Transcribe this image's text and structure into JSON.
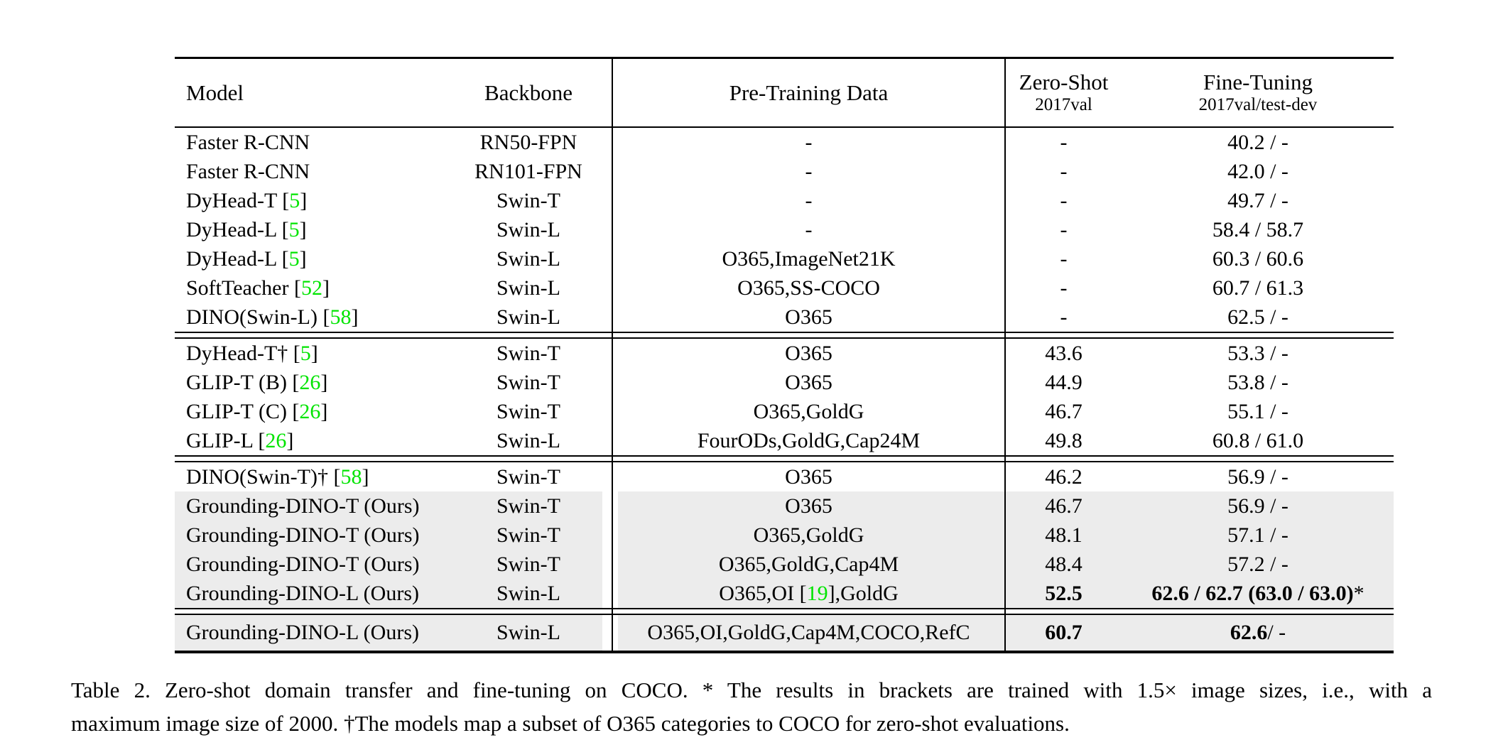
{
  "colors": {
    "citation_green": "#00E400",
    "row_highlight": "#ECECEC"
  },
  "table": {
    "headers": {
      "model": "Model",
      "backbone": "Backbone",
      "pretraining": "Pre-Training Data",
      "zeroshot_title": "Zero-Shot",
      "zeroshot_sub": "2017val",
      "finetuning_title": "Fine-Tuning",
      "finetuning_sub": "2017val/test-dev"
    },
    "sections": [
      {
        "rows": [
          {
            "model": {
              "pre": "Faster R-CNN"
            },
            "backbone": "RN50-FPN",
            "pretrain": {
              "pre": "-"
            },
            "zs": {
              "n": "-"
            },
            "ft": {
              "n": "40.2 / -"
            },
            "hl": false
          },
          {
            "model": {
              "pre": "Faster R-CNN"
            },
            "backbone": "RN101-FPN",
            "pretrain": {
              "pre": "-"
            },
            "zs": {
              "n": "-"
            },
            "ft": {
              "n": "42.0 / -"
            },
            "hl": false
          },
          {
            "model": {
              "pre": "DyHead-T [",
              "cite": "5",
              "post": "]"
            },
            "backbone": "Swin-T",
            "pretrain": {
              "pre": "-"
            },
            "zs": {
              "n": "-"
            },
            "ft": {
              "n": "49.7 / -"
            },
            "hl": false
          },
          {
            "model": {
              "pre": "DyHead-L [",
              "cite": "5",
              "post": "]"
            },
            "backbone": "Swin-L",
            "pretrain": {
              "pre": "-"
            },
            "zs": {
              "n": "-"
            },
            "ft": {
              "n": "58.4 / 58.7"
            },
            "hl": false
          },
          {
            "model": {
              "pre": "DyHead-L [",
              "cite": "5",
              "post": "]"
            },
            "backbone": "Swin-L",
            "pretrain": {
              "pre": "O365,ImageNet21K"
            },
            "zs": {
              "n": "-"
            },
            "ft": {
              "n": "60.3 / 60.6"
            },
            "hl": false
          },
          {
            "model": {
              "pre": "SoftTeacher [",
              "cite": "52",
              "post": "]"
            },
            "backbone": "Swin-L",
            "pretrain": {
              "pre": "O365,SS-COCO"
            },
            "zs": {
              "n": "-"
            },
            "ft": {
              "n": "60.7 / 61.3"
            },
            "hl": false
          },
          {
            "model": {
              "pre": "DINO(Swin-L) [",
              "cite": "58",
              "post": "]"
            },
            "backbone": "Swin-L",
            "pretrain": {
              "pre": "O365"
            },
            "zs": {
              "n": "-"
            },
            "ft": {
              "n": "62.5 / -"
            },
            "hl": false
          }
        ]
      },
      {
        "rows": [
          {
            "model": {
              "pre": "DyHead-T† [",
              "cite": "5",
              "post": "]"
            },
            "backbone": "Swin-T",
            "pretrain": {
              "pre": "O365"
            },
            "zs": {
              "n": "43.6"
            },
            "ft": {
              "n": "53.3 / -"
            },
            "hl": false
          },
          {
            "model": {
              "pre": "GLIP-T (B) [",
              "cite": "26",
              "post": "]"
            },
            "backbone": "Swin-T",
            "pretrain": {
              "pre": "O365"
            },
            "zs": {
              "n": "44.9"
            },
            "ft": {
              "n": "53.8 / -"
            },
            "hl": false
          },
          {
            "model": {
              "pre": "GLIP-T (C) [",
              "cite": "26",
              "post": "]"
            },
            "backbone": "Swin-T",
            "pretrain": {
              "pre": "O365,GoldG"
            },
            "zs": {
              "n": "46.7"
            },
            "ft": {
              "n": "55.1 / -"
            },
            "hl": false
          },
          {
            "model": {
              "pre": "GLIP-L [",
              "cite": "26",
              "post": "]"
            },
            "backbone": "Swin-L",
            "pretrain": {
              "pre": "FourODs,GoldG,Cap24M"
            },
            "zs": {
              "n": "49.8"
            },
            "ft": {
              "n": "60.8 / 61.0"
            },
            "hl": false
          }
        ]
      },
      {
        "rows": [
          {
            "model": {
              "pre": "DINO(Swin-T)† [",
              "cite": "58",
              "post": "]"
            },
            "backbone": "Swin-T",
            "pretrain": {
              "pre": "O365"
            },
            "zs": {
              "n": "46.2"
            },
            "ft": {
              "n": "56.9 / -"
            },
            "hl": false
          },
          {
            "model": {
              "pre": "Grounding-DINO-T (Ours)"
            },
            "backbone": "Swin-T",
            "pretrain": {
              "pre": "O365"
            },
            "zs": {
              "n": "46.7"
            },
            "ft": {
              "n": "56.9 / -"
            },
            "hl": true
          },
          {
            "model": {
              "pre": "Grounding-DINO-T (Ours)"
            },
            "backbone": "Swin-T",
            "pretrain": {
              "pre": "O365,GoldG"
            },
            "zs": {
              "n": "48.1"
            },
            "ft": {
              "n": "57.1 / -"
            },
            "hl": true
          },
          {
            "model": {
              "pre": "Grounding-DINO-T (Ours)"
            },
            "backbone": "Swin-T",
            "pretrain": {
              "pre": "O365,GoldG,Cap4M"
            },
            "zs": {
              "n": "48.4"
            },
            "ft": {
              "n": "57.2 / -"
            },
            "hl": true
          },
          {
            "model": {
              "pre": "Grounding-DINO-L (Ours)"
            },
            "backbone": "Swin-L",
            "pretrain": {
              "pre": "O365,OI [",
              "cite": "19",
              "post": "],GoldG"
            },
            "zs": {
              "b": "52.5"
            },
            "ft": {
              "b": "62.6 / 62.7 (63.0 / 63.0)",
              "n": "*"
            },
            "hl": true
          }
        ]
      },
      {
        "rows": [
          {
            "model": {
              "pre": "Grounding-DINO-L (Ours)"
            },
            "backbone": "Swin-L",
            "pretrain": {
              "pre": "O365,OI,GoldG,Cap4M,COCO,RefC"
            },
            "zs": {
              "b": "60.7"
            },
            "ft": {
              "b": "62.6",
              "n": " / -"
            },
            "hl": true
          }
        ]
      }
    ]
  },
  "caption": {
    "line1": "Table 2.  Zero-shot domain transfer and fine-tuning on COCO. * The results in brackets are trained with 1.5× image sizes, i.e., with a",
    "line2": "maximum image size of 2000. †The models map a subset of O365 categories to COCO for zero-shot evaluations."
  }
}
